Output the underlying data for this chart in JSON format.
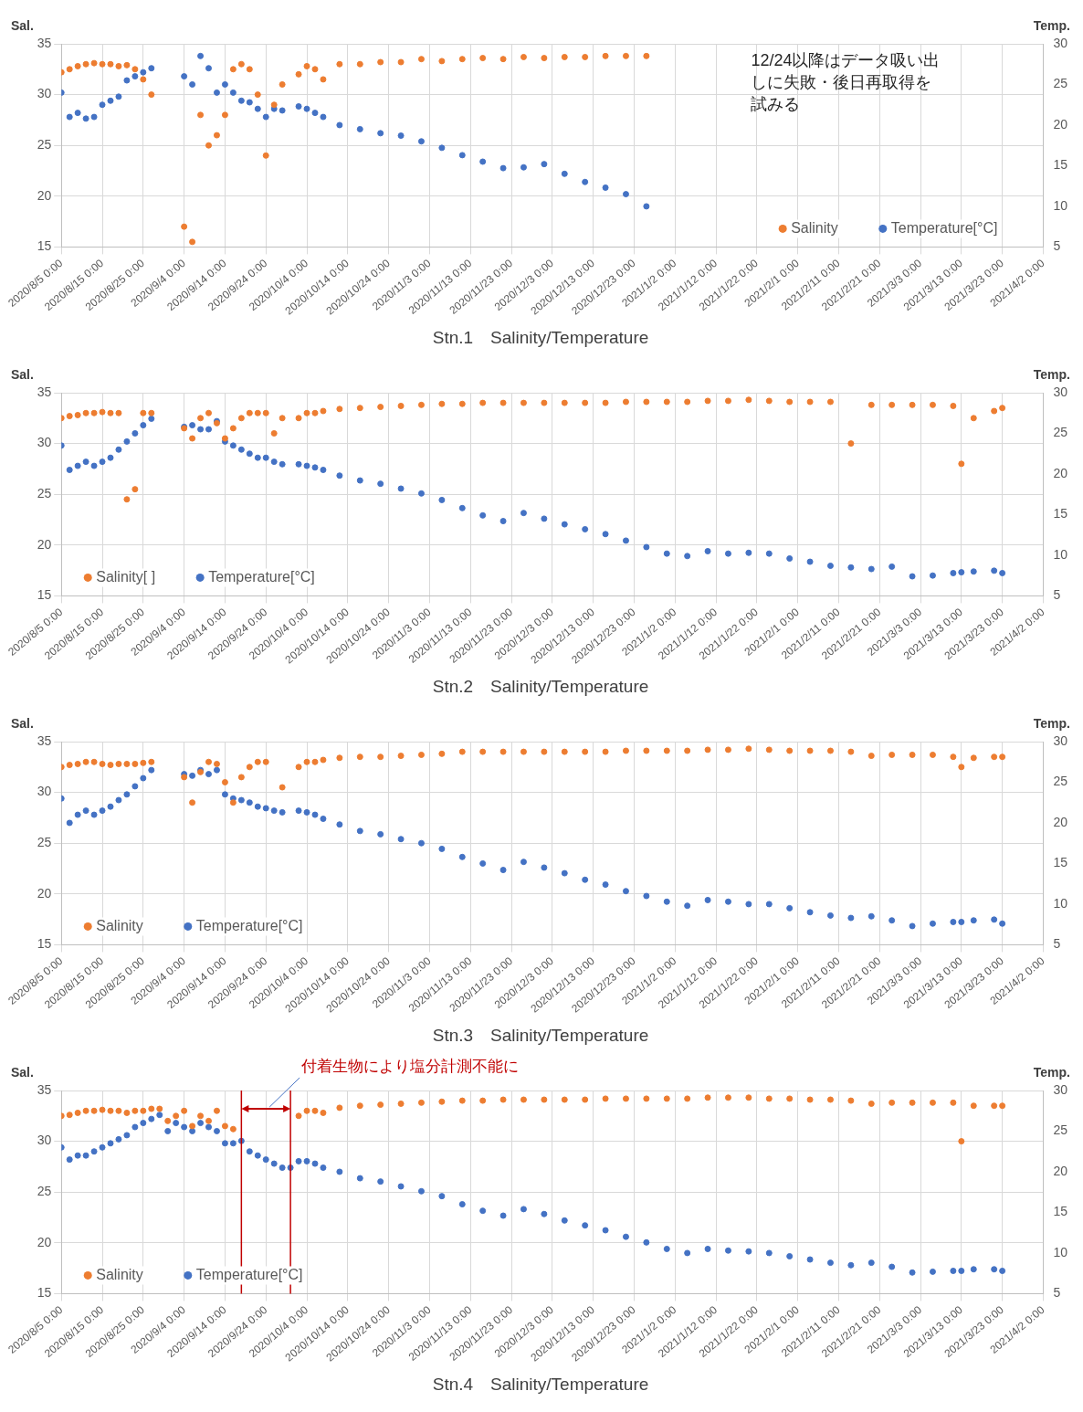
{
  "chart_data": [
    {
      "type": "scatter",
      "title": "Stn.1　Salinity/Temperature",
      "ylabel": "Sal.",
      "y2label": "Temp.",
      "annotations": [
        "12/24以降はデータ吸い出しに失敗・後日再取得を試みる"
      ],
      "x": [
        "2020-08-05",
        "2020-08-07",
        "2020-08-09",
        "2020-08-11",
        "2020-08-13",
        "2020-08-15",
        "2020-08-17",
        "2020-08-19",
        "2020-08-21",
        "2020-08-23",
        "2020-08-25",
        "2020-08-27",
        "2020-08-29",
        "2020-08-31",
        "2020-09-02",
        "2020-09-04",
        "2020-09-06",
        "2020-09-08",
        "2020-09-10",
        "2020-09-12",
        "2020-09-14",
        "2020-09-16",
        "2020-09-18",
        "2020-09-20",
        "2020-09-22",
        "2020-09-24",
        "2020-09-26",
        "2020-09-28",
        "2020-09-30",
        "2020-10-02",
        "2020-10-04",
        "2020-10-06",
        "2020-10-08",
        "2020-10-12",
        "2020-10-17",
        "2020-10-22",
        "2020-10-27",
        "2020-11-01",
        "2020-11-06",
        "2020-11-11",
        "2020-11-16",
        "2020-11-21",
        "2020-11-26",
        "2020-12-01",
        "2020-12-06",
        "2020-12-11",
        "2020-12-16",
        "2020-12-21",
        "2020-12-26"
      ],
      "series": [
        {
          "name": "Salinity",
          "color": "#ed7d31",
          "values": [
            32.2,
            32.5,
            32.8,
            33,
            33.1,
            33,
            33,
            32.8,
            32.9,
            32.5,
            31.5,
            30,
            null,
            null,
            null,
            17,
            15.5,
            28,
            25,
            26,
            28,
            32.5,
            33,
            32.5,
            30,
            24,
            29,
            31,
            null,
            32,
            32.8,
            32.5,
            31.5,
            33,
            33,
            33.2,
            33.2,
            33.5,
            33.3,
            33.5,
            33.6,
            33.5,
            33.7,
            33.6,
            33.7,
            33.7,
            33.8,
            33.8,
            33.8
          ]
        },
        {
          "name": "Temperature[°C]",
          "color": "#4472c4",
          "axis": "y2",
          "values": [
            24,
            21,
            21.5,
            20.8,
            21,
            22.5,
            23,
            23.5,
            25.5,
            26,
            26.5,
            27,
            null,
            null,
            null,
            26,
            25,
            28.5,
            27,
            24,
            25,
            24,
            23,
            22.8,
            22,
            21,
            22,
            21.8,
            null,
            22.3,
            22,
            21.5,
            21,
            20,
            19.5,
            19,
            18.7,
            18,
            17.2,
            16.3,
            15.5,
            14.7,
            14.8,
            15.2,
            14,
            13,
            12.3,
            11.5,
            10
          ]
        }
      ],
      "xlim": [
        "2020-08-05",
        "2021-04-02"
      ],
      "xticks": [
        {
          "value": "2020-08-05",
          "label": "2020/8/5 0:00"
        },
        {
          "value": "2020-08-15",
          "label": "2020/8/15 0:00"
        },
        {
          "value": "2020-08-25",
          "label": "2020/8/25 0:00"
        },
        {
          "value": "2020-09-04",
          "label": "2020/9/4 0:00"
        },
        {
          "value": "2020-09-14",
          "label": "2020/9/14 0:00"
        },
        {
          "value": "2020-09-24",
          "label": "2020/9/24 0:00"
        },
        {
          "value": "2020-10-04",
          "label": "2020/10/4 0:00"
        },
        {
          "value": "2020-10-14",
          "label": "2020/10/14 0:00"
        },
        {
          "value": "2020-10-24",
          "label": "2020/10/24 0:00"
        },
        {
          "value": "2020-11-03",
          "label": "2020/11/3 0:00"
        },
        {
          "value": "2020-11-13",
          "label": "2020/11/13 0:00"
        },
        {
          "value": "2020-11-23",
          "label": "2020/11/23 0:00"
        },
        {
          "value": "2020-12-03",
          "label": "2020/12/3 0:00"
        },
        {
          "value": "2020-12-13",
          "label": "2020/12/13 0:00"
        },
        {
          "value": "2020-12-23",
          "label": "2020/12/23 0:00"
        },
        {
          "value": "2021-01-02",
          "label": "2021/1/2 0:00"
        },
        {
          "value": "2021-01-12",
          "label": "2021/1/12 0:00"
        },
        {
          "value": "2021-01-22",
          "label": "2021/1/22 0:00"
        },
        {
          "value": "2021-02-01",
          "label": "2021/2/1 0:00"
        },
        {
          "value": "2021-02-11",
          "label": "2021/2/11 0:00"
        },
        {
          "value": "2021-02-21",
          "label": "2021/2/21 0:00"
        },
        {
          "value": "2021-03-03",
          "label": "2021/3/3 0:00"
        },
        {
          "value": "2021-03-13",
          "label": "2021/3/13 0:00"
        },
        {
          "value": "2021-03-23",
          "label": "2021/3/23 0:00"
        },
        {
          "value": "2021-04-02",
          "label": "2021/4/2 0:00"
        }
      ],
      "ylim": [
        15,
        35
      ],
      "yticks": [
        15,
        20,
        25,
        30,
        35
      ],
      "y2lim": [
        5,
        30
      ],
      "y2ticks": [
        5,
        10,
        15,
        20,
        25,
        30
      ],
      "grid": true,
      "legend": "bottom right",
      "marker": "circle"
    },
    {
      "type": "scatter",
      "title": "Stn.2　Salinity/Temperature",
      "ylabel": "Sal.",
      "y2label": "Temp.",
      "x": [
        "2020-08-05",
        "2020-08-07",
        "2020-08-09",
        "2020-08-11",
        "2020-08-13",
        "2020-08-15",
        "2020-08-17",
        "2020-08-19",
        "2020-08-21",
        "2020-08-23",
        "2020-08-25",
        "2020-08-27",
        "2020-08-29",
        "2020-08-31",
        "2020-09-02",
        "2020-09-04",
        "2020-09-06",
        "2020-09-08",
        "2020-09-10",
        "2020-09-12",
        "2020-09-14",
        "2020-09-16",
        "2020-09-18",
        "2020-09-20",
        "2020-09-22",
        "2020-09-24",
        "2020-09-26",
        "2020-09-28",
        "2020-09-30",
        "2020-10-02",
        "2020-10-04",
        "2020-10-06",
        "2020-10-08",
        "2020-10-12",
        "2020-10-17",
        "2020-10-22",
        "2020-10-27",
        "2020-11-01",
        "2020-11-06",
        "2020-11-11",
        "2020-11-16",
        "2020-11-21",
        "2020-11-26",
        "2020-12-01",
        "2020-12-06",
        "2020-12-11",
        "2020-12-16",
        "2020-12-21",
        "2020-12-26",
        "2020-12-31",
        "2021-01-05",
        "2021-01-10",
        "2021-01-15",
        "2021-01-20",
        "2021-01-25",
        "2021-01-30",
        "2021-02-04",
        "2021-02-09",
        "2021-02-14",
        "2021-02-19",
        "2021-02-24",
        "2021-03-01",
        "2021-03-06",
        "2021-03-11",
        "2021-03-13",
        "2021-03-16",
        "2021-03-21",
        "2021-03-23"
      ],
      "series": [
        {
          "name": "Salinity[ ]",
          "color": "#ed7d31",
          "values": [
            32.5,
            32.7,
            32.8,
            33,
            33,
            33.1,
            33,
            33,
            24.5,
            25.5,
            33,
            33,
            null,
            null,
            null,
            31.5,
            30.5,
            32.5,
            33,
            32,
            30.5,
            31.5,
            32.5,
            33,
            33,
            33,
            31,
            32.5,
            null,
            32.5,
            33,
            33,
            33.2,
            33.4,
            33.5,
            33.6,
            33.7,
            33.8,
            33.9,
            33.9,
            34,
            34,
            34,
            34,
            34,
            34,
            34,
            34.1,
            34.1,
            34.1,
            34.1,
            34.2,
            34.2,
            34.3,
            34.2,
            34.1,
            34.1,
            34.1,
            30,
            33.8,
            33.8,
            33.8,
            33.8,
            33.7,
            28,
            32.5,
            33.2,
            33.5
          ]
        },
        {
          "name": "Temperature[°C]",
          "color": "#4472c4",
          "axis": "y2",
          "values": [
            23.5,
            20.5,
            21,
            21.5,
            21,
            21.5,
            22,
            23,
            24,
            25,
            26,
            26.8,
            null,
            null,
            null,
            25.8,
            26,
            25.5,
            25.5,
            26.5,
            24,
            23.5,
            23,
            22.5,
            22,
            22,
            21.5,
            21.2,
            null,
            21.2,
            21,
            20.8,
            20.5,
            19.8,
            19.2,
            18.8,
            18.2,
            17.6,
            16.8,
            15.8,
            14.9,
            14.2,
            15.2,
            14.5,
            13.8,
            13.2,
            12.6,
            11.8,
            11,
            10.2,
            9.9,
            10.5,
            10.2,
            10.3,
            10.2,
            9.6,
            9.2,
            8.7,
            8.5,
            8.3,
            8.6,
            7.4,
            7.5,
            7.8,
            7.9,
            8,
            8.1,
            7.8
          ]
        }
      ],
      "xlim": [
        "2020-08-05",
        "2021-04-02"
      ],
      "xticks": [
        {
          "value": "2020-08-05",
          "label": "2020/8/5 0:00"
        },
        {
          "value": "2020-08-15",
          "label": "2020/8/15 0:00"
        },
        {
          "value": "2020-08-25",
          "label": "2020/8/25 0:00"
        },
        {
          "value": "2020-09-04",
          "label": "2020/9/4 0:00"
        },
        {
          "value": "2020-09-14",
          "label": "2020/9/14 0:00"
        },
        {
          "value": "2020-09-24",
          "label": "2020/9/24 0:00"
        },
        {
          "value": "2020-10-04",
          "label": "2020/10/4 0:00"
        },
        {
          "value": "2020-10-14",
          "label": "2020/10/14 0:00"
        },
        {
          "value": "2020-10-24",
          "label": "2020/10/24 0:00"
        },
        {
          "value": "2020-11-03",
          "label": "2020/11/3 0:00"
        },
        {
          "value": "2020-11-13",
          "label": "2020/11/13 0:00"
        },
        {
          "value": "2020-11-23",
          "label": "2020/11/23 0:00"
        },
        {
          "value": "2020-12-03",
          "label": "2020/12/3 0:00"
        },
        {
          "value": "2020-12-13",
          "label": "2020/12/13 0:00"
        },
        {
          "value": "2020-12-23",
          "label": "2020/12/23 0:00"
        },
        {
          "value": "2021-01-02",
          "label": "2021/1/2 0:00"
        },
        {
          "value": "2021-01-12",
          "label": "2021/1/12 0:00"
        },
        {
          "value": "2021-01-22",
          "label": "2021/1/22 0:00"
        },
        {
          "value": "2021-02-01",
          "label": "2021/2/1 0:00"
        },
        {
          "value": "2021-02-11",
          "label": "2021/2/11 0:00"
        },
        {
          "value": "2021-02-21",
          "label": "2021/2/21 0:00"
        },
        {
          "value": "2021-03-03",
          "label": "2021/3/3 0:00"
        },
        {
          "value": "2021-03-13",
          "label": "2021/3/13 0:00"
        },
        {
          "value": "2021-03-23",
          "label": "2021/3/23 0:00"
        },
        {
          "value": "2021-04-02",
          "label": "2021/4/2 0:00"
        }
      ],
      "ylim": [
        15,
        35
      ],
      "yticks": [
        15,
        20,
        25,
        30,
        35
      ],
      "y2lim": [
        5,
        30
      ],
      "y2ticks": [
        5,
        10,
        15,
        20,
        25,
        30
      ],
      "grid": true,
      "legend": "bottom left",
      "marker": "circle"
    },
    {
      "type": "scatter",
      "title": "Stn.3　Salinity/Temperature",
      "ylabel": "Sal.",
      "y2label": "Temp.",
      "x": [
        "2020-08-05",
        "2020-08-07",
        "2020-08-09",
        "2020-08-11",
        "2020-08-13",
        "2020-08-15",
        "2020-08-17",
        "2020-08-19",
        "2020-08-21",
        "2020-08-23",
        "2020-08-25",
        "2020-08-27",
        "2020-08-29",
        "2020-08-31",
        "2020-09-02",
        "2020-09-04",
        "2020-09-06",
        "2020-09-08",
        "2020-09-10",
        "2020-09-12",
        "2020-09-14",
        "2020-09-16",
        "2020-09-18",
        "2020-09-20",
        "2020-09-22",
        "2020-09-24",
        "2020-09-26",
        "2020-09-28",
        "2020-09-30",
        "2020-10-02",
        "2020-10-04",
        "2020-10-06",
        "2020-10-08",
        "2020-10-12",
        "2020-10-17",
        "2020-10-22",
        "2020-10-27",
        "2020-11-01",
        "2020-11-06",
        "2020-11-11",
        "2020-11-16",
        "2020-11-21",
        "2020-11-26",
        "2020-12-01",
        "2020-12-06",
        "2020-12-11",
        "2020-12-16",
        "2020-12-21",
        "2020-12-26",
        "2020-12-31",
        "2021-01-05",
        "2021-01-10",
        "2021-01-15",
        "2021-01-20",
        "2021-01-25",
        "2021-01-30",
        "2021-02-04",
        "2021-02-09",
        "2021-02-14",
        "2021-02-19",
        "2021-02-24",
        "2021-03-01",
        "2021-03-06",
        "2021-03-11",
        "2021-03-13",
        "2021-03-16",
        "2021-03-21",
        "2021-03-23"
      ],
      "series": [
        {
          "name": "Salinity",
          "color": "#ed7d31",
          "values": [
            32.5,
            32.7,
            32.8,
            33,
            33,
            32.8,
            32.7,
            32.8,
            32.8,
            32.8,
            32.9,
            33,
            null,
            null,
            null,
            31.5,
            29,
            32,
            33,
            32.8,
            31,
            29,
            31.5,
            32.5,
            33,
            33,
            null,
            30.5,
            null,
            32.5,
            33,
            33,
            33.2,
            33.4,
            33.5,
            33.5,
            33.6,
            33.7,
            33.8,
            34,
            34,
            34,
            34,
            34,
            34,
            34,
            34,
            34.1,
            34.1,
            34.1,
            34.1,
            34.2,
            34.2,
            34.3,
            34.2,
            34.1,
            34.1,
            34.1,
            34,
            33.6,
            33.7,
            33.7,
            33.7,
            33.5,
            32.5,
            33.4,
            33.5,
            33.5
          ]
        },
        {
          "name": "Temperature[°C]",
          "color": "#4472c4",
          "axis": "y2",
          "values": [
            23,
            20,
            21,
            21.5,
            21,
            21.5,
            22,
            22.8,
            23.5,
            24.5,
            25.5,
            26.5,
            null,
            null,
            null,
            26,
            25.8,
            26.5,
            26,
            26.5,
            23.5,
            23,
            22.8,
            22.5,
            22,
            21.8,
            21.5,
            21.3,
            null,
            21.5,
            21.3,
            21,
            20.5,
            19.8,
            19,
            18.6,
            18,
            17.5,
            16.8,
            15.8,
            15,
            14.2,
            15.2,
            14.5,
            13.8,
            13,
            12.4,
            11.6,
            11,
            10.3,
            9.8,
            10.5,
            10.3,
            10,
            10,
            9.5,
            9,
            8.6,
            8.3,
            8.5,
            8,
            7.3,
            7.6,
            7.8,
            7.8,
            8,
            8.1,
            7.6
          ]
        }
      ],
      "xlim": [
        "2020-08-05",
        "2021-04-02"
      ],
      "xticks": [
        {
          "value": "2020-08-05",
          "label": "2020/8/5 0:00"
        },
        {
          "value": "2020-08-15",
          "label": "2020/8/15 0:00"
        },
        {
          "value": "2020-08-25",
          "label": "2020/8/25 0:00"
        },
        {
          "value": "2020-09-04",
          "label": "2020/9/4 0:00"
        },
        {
          "value": "2020-09-14",
          "label": "2020/9/14 0:00"
        },
        {
          "value": "2020-09-24",
          "label": "2020/9/24 0:00"
        },
        {
          "value": "2020-10-04",
          "label": "2020/10/4 0:00"
        },
        {
          "value": "2020-10-14",
          "label": "2020/10/14 0:00"
        },
        {
          "value": "2020-10-24",
          "label": "2020/10/24 0:00"
        },
        {
          "value": "2020-11-03",
          "label": "2020/11/3 0:00"
        },
        {
          "value": "2020-11-13",
          "label": "2020/11/13 0:00"
        },
        {
          "value": "2020-11-23",
          "label": "2020/11/23 0:00"
        },
        {
          "value": "2020-12-03",
          "label": "2020/12/3 0:00"
        },
        {
          "value": "2020-12-13",
          "label": "2020/12/13 0:00"
        },
        {
          "value": "2020-12-23",
          "label": "2020/12/23 0:00"
        },
        {
          "value": "2021-01-02",
          "label": "2021/1/2 0:00"
        },
        {
          "value": "2021-01-12",
          "label": "2021/1/12 0:00"
        },
        {
          "value": "2021-01-22",
          "label": "2021/1/22 0:00"
        },
        {
          "value": "2021-02-01",
          "label": "2021/2/1 0:00"
        },
        {
          "value": "2021-02-11",
          "label": "2021/2/11 0:00"
        },
        {
          "value": "2021-02-21",
          "label": "2021/2/21 0:00"
        },
        {
          "value": "2021-03-03",
          "label": "2021/3/3 0:00"
        },
        {
          "value": "2021-03-13",
          "label": "2021/3/13 0:00"
        },
        {
          "value": "2021-03-23",
          "label": "2021/3/23 0:00"
        },
        {
          "value": "2021-04-02",
          "label": "2021/4/2 0:00"
        }
      ],
      "ylim": [
        15,
        35
      ],
      "yticks": [
        15,
        20,
        25,
        30,
        35
      ],
      "y2lim": [
        5,
        30
      ],
      "y2ticks": [
        5,
        10,
        15,
        20,
        25,
        30
      ],
      "grid": true,
      "legend": "bottom left",
      "marker": "circle"
    },
    {
      "type": "scatter",
      "title": "Stn.4　Salinity/Temperature",
      "ylabel": "Sal.",
      "y2label": "Temp.",
      "annotations": [
        "付着生物により塩分計測不能に"
      ],
      "ref_lines": [
        {
          "axis": "x",
          "value": "2020-09-18",
          "color": "#c00000"
        },
        {
          "axis": "x",
          "value": "2020-09-30",
          "color": "#c00000"
        }
      ],
      "x": [
        "2020-08-05",
        "2020-08-07",
        "2020-08-09",
        "2020-08-11",
        "2020-08-13",
        "2020-08-15",
        "2020-08-17",
        "2020-08-19",
        "2020-08-21",
        "2020-08-23",
        "2020-08-25",
        "2020-08-27",
        "2020-08-29",
        "2020-08-31",
        "2020-09-02",
        "2020-09-04",
        "2020-09-06",
        "2020-09-08",
        "2020-09-10",
        "2020-09-12",
        "2020-09-14",
        "2020-09-16",
        "2020-09-18",
        "2020-09-20",
        "2020-09-22",
        "2020-09-24",
        "2020-09-26",
        "2020-09-28",
        "2020-09-30",
        "2020-10-02",
        "2020-10-04",
        "2020-10-06",
        "2020-10-08",
        "2020-10-12",
        "2020-10-17",
        "2020-10-22",
        "2020-10-27",
        "2020-11-01",
        "2020-11-06",
        "2020-11-11",
        "2020-11-16",
        "2020-11-21",
        "2020-11-26",
        "2020-12-01",
        "2020-12-06",
        "2020-12-11",
        "2020-12-16",
        "2020-12-21",
        "2020-12-26",
        "2020-12-31",
        "2021-01-05",
        "2021-01-10",
        "2021-01-15",
        "2021-01-20",
        "2021-01-25",
        "2021-01-30",
        "2021-02-04",
        "2021-02-09",
        "2021-02-14",
        "2021-02-19",
        "2021-02-24",
        "2021-03-01",
        "2021-03-06",
        "2021-03-11",
        "2021-03-13",
        "2021-03-16",
        "2021-03-21",
        "2021-03-23"
      ],
      "series": [
        {
          "name": "Salinity",
          "color": "#ed7d31",
          "values": [
            32.5,
            32.6,
            32.8,
            33,
            33,
            33.1,
            33,
            33,
            32.8,
            33,
            33,
            33.2,
            33.2,
            32,
            32.5,
            33,
            31.5,
            32.5,
            32,
            33,
            31.5,
            31.2,
            null,
            null,
            null,
            null,
            null,
            null,
            null,
            32.5,
            33,
            33,
            32.8,
            33.3,
            33.5,
            33.6,
            33.7,
            33.8,
            33.9,
            34,
            34,
            34.1,
            34.1,
            34.1,
            34.1,
            34.1,
            34.2,
            34.2,
            34.2,
            34.2,
            34.2,
            34.3,
            34.3,
            34.3,
            34.2,
            34.2,
            34.1,
            34.1,
            34,
            33.7,
            33.8,
            33.8,
            33.8,
            33.8,
            30,
            33.5,
            33.5,
            33.5
          ]
        },
        {
          "name": "Temperature[°C]",
          "color": "#4472c4",
          "axis": "y2",
          "values": [
            23,
            21.5,
            22,
            22,
            22.5,
            23,
            23.5,
            24,
            24.5,
            25.5,
            26,
            26.5,
            27,
            25,
            26,
            25.5,
            25,
            26,
            25.5,
            25,
            23.5,
            23.5,
            23.8,
            22.5,
            22,
            21.5,
            21,
            20.5,
            20.5,
            21.3,
            21.3,
            21,
            20.5,
            20,
            19.2,
            18.8,
            18.2,
            17.6,
            17,
            16,
            15.2,
            14.6,
            15.4,
            14.8,
            14,
            13.4,
            12.8,
            12,
            11.3,
            10.5,
            10,
            10.5,
            10.3,
            10.2,
            10,
            9.6,
            9.2,
            8.8,
            8.5,
            8.8,
            8.3,
            7.6,
            7.7,
            7.8,
            7.8,
            8,
            8,
            7.8
          ]
        }
      ],
      "xlim": [
        "2020-08-05",
        "2021-04-02"
      ],
      "xticks": [
        {
          "value": "2020-08-05",
          "label": "2020/8/5 0:00"
        },
        {
          "value": "2020-08-15",
          "label": "2020/8/15 0:00"
        },
        {
          "value": "2020-08-25",
          "label": "2020/8/25 0:00"
        },
        {
          "value": "2020-09-04",
          "label": "2020/9/4 0:00"
        },
        {
          "value": "2020-09-14",
          "label": "2020/9/14 0:00"
        },
        {
          "value": "2020-09-24",
          "label": "2020/9/24 0:00"
        },
        {
          "value": "2020-10-04",
          "label": "2020/10/4 0:00"
        },
        {
          "value": "2020-10-14",
          "label": "2020/10/14 0:00"
        },
        {
          "value": "2020-10-24",
          "label": "2020/10/24 0:00"
        },
        {
          "value": "2020-11-03",
          "label": "2020/11/3 0:00"
        },
        {
          "value": "2020-11-13",
          "label": "2020/11/13 0:00"
        },
        {
          "value": "2020-11-23",
          "label": "2020/11/23 0:00"
        },
        {
          "value": "2020-12-03",
          "label": "2020/12/3 0:00"
        },
        {
          "value": "2020-12-13",
          "label": "2020/12/13 0:00"
        },
        {
          "value": "2020-12-23",
          "label": "2020/12/23 0:00"
        },
        {
          "value": "2021-01-02",
          "label": "2021/1/2 0:00"
        },
        {
          "value": "2021-01-12",
          "label": "2021/1/12 0:00"
        },
        {
          "value": "2021-01-22",
          "label": "2021/1/22 0:00"
        },
        {
          "value": "2021-02-01",
          "label": "2021/2/1 0:00"
        },
        {
          "value": "2021-02-11",
          "label": "2021/2/11 0:00"
        },
        {
          "value": "2021-02-21",
          "label": "2021/2/21 0:00"
        },
        {
          "value": "2021-03-03",
          "label": "2021/3/3 0:00"
        },
        {
          "value": "2021-03-13",
          "label": "2021/3/13 0:00"
        },
        {
          "value": "2021-03-23",
          "label": "2021/3/23 0:00"
        },
        {
          "value": "2021-04-02",
          "label": "2021/4/2 0:00"
        }
      ],
      "ylim": [
        15,
        35
      ],
      "yticks": [
        15,
        20,
        25,
        30,
        35
      ],
      "y2lim": [
        5,
        30
      ],
      "y2ticks": [
        5,
        10,
        15,
        20,
        25,
        30
      ],
      "grid": true,
      "legend": "bottom left",
      "marker": "circle"
    }
  ]
}
